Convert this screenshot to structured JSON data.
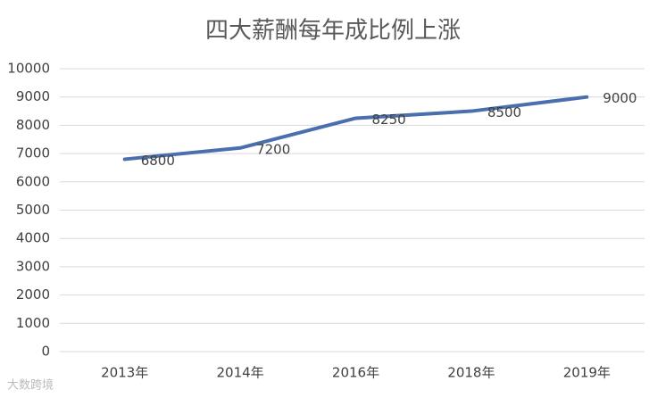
{
  "chart_data": {
    "type": "line",
    "title": "四大薪酬每年成比例上涨",
    "categories": [
      "2013年",
      "2014年",
      "2016年",
      "2018年",
      "2019年"
    ],
    "values": [
      6800,
      7200,
      8250,
      8500,
      9000
    ],
    "color": "#4a6fae",
    "ylim": [
      0,
      10000
    ],
    "yticks": [
      0,
      1000,
      2000,
      3000,
      4000,
      5000,
      6000,
      7000,
      8000,
      9000,
      10000
    ],
    "grid": true,
    "data_labels": true
  },
  "watermark": "大数跨境"
}
